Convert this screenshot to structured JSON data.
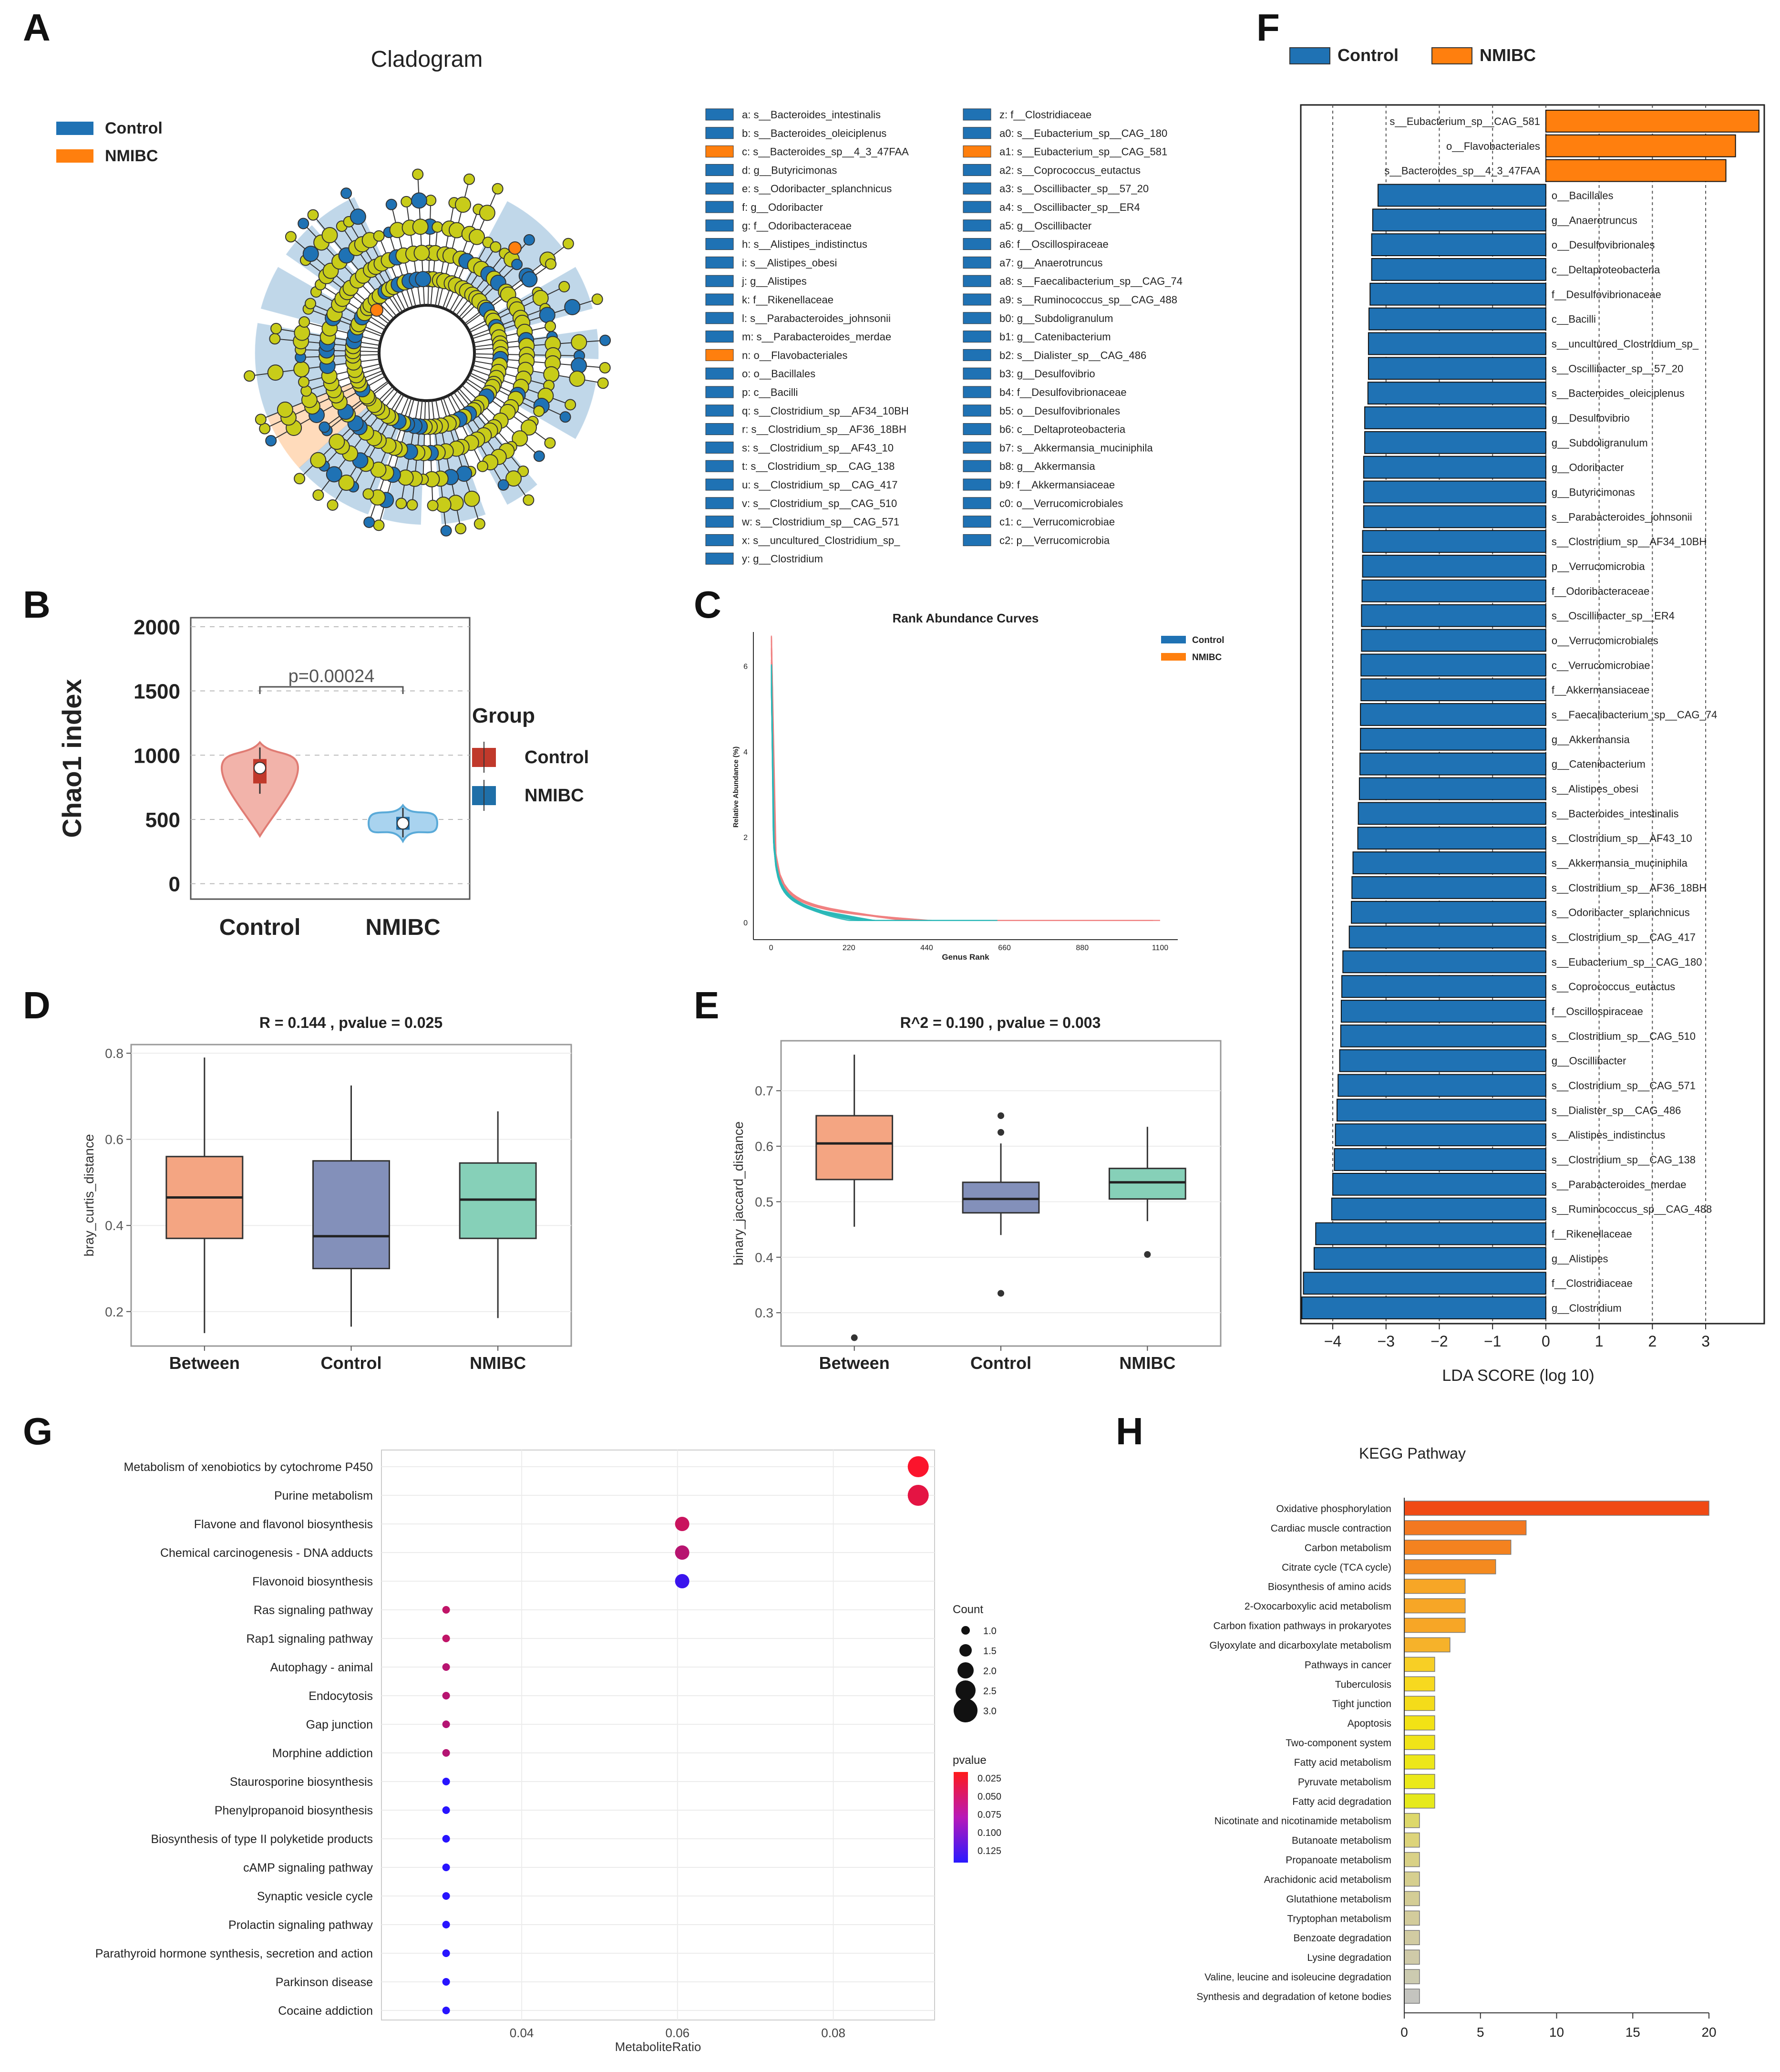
{
  "panel_labels": {
    "A": "A",
    "B": "B",
    "C": "C",
    "D": "D",
    "E": "E",
    "F": "F",
    "G": "G",
    "H": "H"
  },
  "colors": {
    "control": "#1f72b4",
    "nmibc": "#ff7f0e",
    "node": "#c8cc19",
    "dark": "#1a1a1a"
  },
  "chart_data": [
    {
      "id": "A",
      "type": "cladogram",
      "title": "Cladogram",
      "legend": [
        {
          "name": "Control",
          "color": "#1f72b4"
        },
        {
          "name": "NMIBC",
          "color": "#ff7f0e"
        }
      ],
      "node_labels": [
        {
          "key": "a",
          "group": "Control",
          "text": "a: s__Bacteroides_intestinalis"
        },
        {
          "key": "b",
          "group": "Control",
          "text": "b: s__Bacteroides_oleiciplenus"
        },
        {
          "key": "c",
          "group": "NMIBC",
          "text": "c: s__Bacteroides_sp__4_3_47FAA"
        },
        {
          "key": "d",
          "group": "Control",
          "text": "d: g__Butyricimonas"
        },
        {
          "key": "e",
          "group": "Control",
          "text": "e: s__Odoribacter_splanchnicus"
        },
        {
          "key": "f",
          "group": "Control",
          "text": "f: g__Odoribacter"
        },
        {
          "key": "g",
          "group": "Control",
          "text": "g: f__Odoribacteraceae"
        },
        {
          "key": "h",
          "group": "Control",
          "text": "h: s__Alistipes_indistinctus"
        },
        {
          "key": "i",
          "group": "Control",
          "text": "i: s__Alistipes_obesi"
        },
        {
          "key": "j",
          "group": "Control",
          "text": "j: g__Alistipes"
        },
        {
          "key": "k",
          "group": "Control",
          "text": "k: f__Rikenellaceae"
        },
        {
          "key": "l",
          "group": "Control",
          "text": "l: s__Parabacteroides_johnsonii"
        },
        {
          "key": "m",
          "group": "Control",
          "text": "m: s__Parabacteroides_merdae"
        },
        {
          "key": "n",
          "group": "NMIBC",
          "text": "n: o__Flavobacteriales"
        },
        {
          "key": "o",
          "group": "Control",
          "text": "o: o__Bacillales"
        },
        {
          "key": "p",
          "group": "Control",
          "text": "p: c__Bacilli"
        },
        {
          "key": "q",
          "group": "Control",
          "text": "q: s__Clostridium_sp__AF34_10BH"
        },
        {
          "key": "r",
          "group": "Control",
          "text": "r: s__Clostridium_sp__AF36_18BH"
        },
        {
          "key": "s",
          "group": "Control",
          "text": "s: s__Clostridium_sp__AF43_10"
        },
        {
          "key": "t",
          "group": "Control",
          "text": "t: s__Clostridium_sp__CAG_138"
        },
        {
          "key": "u",
          "group": "Control",
          "text": "u: s__Clostridium_sp__CAG_417"
        },
        {
          "key": "v",
          "group": "Control",
          "text": "v: s__Clostridium_sp__CAG_510"
        },
        {
          "key": "w",
          "group": "Control",
          "text": "w: s__Clostridium_sp__CAG_571"
        },
        {
          "key": "x",
          "group": "Control",
          "text": "x: s__uncultured_Clostridium_sp_"
        },
        {
          "key": "y",
          "group": "Control",
          "text": "y: g__Clostridium"
        },
        {
          "key": "z",
          "group": "Control",
          "text": "z: f__Clostridiaceae"
        },
        {
          "key": "a0",
          "group": "Control",
          "text": "a0: s__Eubacterium_sp__CAG_180"
        },
        {
          "key": "a1",
          "group": "NMIBC",
          "text": "a1: s__Eubacterium_sp__CAG_581"
        },
        {
          "key": "a2",
          "group": "Control",
          "text": "a2: s__Coprococcus_eutactus"
        },
        {
          "key": "a3",
          "group": "Control",
          "text": "a3: s__Oscillibacter_sp__57_20"
        },
        {
          "key": "a4",
          "group": "Control",
          "text": "a4: s__Oscillibacter_sp__ER4"
        },
        {
          "key": "a5",
          "group": "Control",
          "text": "a5: g__Oscillibacter"
        },
        {
          "key": "a6",
          "group": "Control",
          "text": "a6: f__Oscillospiraceae"
        },
        {
          "key": "a7",
          "group": "Control",
          "text": "a7: g__Anaerotruncus"
        },
        {
          "key": "a8",
          "group": "Control",
          "text": "a8: s__Faecalibacterium_sp__CAG_74"
        },
        {
          "key": "a9",
          "group": "Control",
          "text": "a9: s__Ruminococcus_sp__CAG_488"
        },
        {
          "key": "b0",
          "group": "Control",
          "text": "b0: g__Subdoligranulum"
        },
        {
          "key": "b1",
          "group": "Control",
          "text": "b1: g__Catenibacterium"
        },
        {
          "key": "b2",
          "group": "Control",
          "text": "b2: s__Dialister_sp__CAG_486"
        },
        {
          "key": "b3",
          "group": "Control",
          "text": "b3: g__Desulfovibrio"
        },
        {
          "key": "b4",
          "group": "Control",
          "text": "b4: f__Desulfovibrionaceae"
        },
        {
          "key": "b5",
          "group": "Control",
          "text": "b5: o__Desulfovibrionales"
        },
        {
          "key": "b6",
          "group": "Control",
          "text": "b6: c__Deltaproteobacteria"
        },
        {
          "key": "b7",
          "group": "Control",
          "text": "b7: s__Akkermansia_muciniphila"
        },
        {
          "key": "b8",
          "group": "Control",
          "text": "b8: g__Akkermansia"
        },
        {
          "key": "b9",
          "group": "Control",
          "text": "b9: f__Akkermansiaceae"
        },
        {
          "key": "c0",
          "group": "Control",
          "text": "c0: o__Verrucomicrobiales"
        },
        {
          "key": "c1",
          "group": "Control",
          "text": "c1: c__Verrucomicrobiae"
        },
        {
          "key": "c2",
          "group": "Control",
          "text": "c2: p__Verrucomicrobia"
        }
      ]
    },
    {
      "id": "B",
      "type": "violin",
      "ylabel": "Chao1 index",
      "categories": [
        "Control",
        "NMIBC"
      ],
      "yticks": [
        0,
        500,
        1000,
        1500,
        2000
      ],
      "ylim": [
        -120,
        2070
      ],
      "medians": [
        900,
        470
      ],
      "q1": [
        780,
        420
      ],
      "q3": [
        970,
        520
      ],
      "annotation": "p=0.00024",
      "legend_title": "Group",
      "legend": [
        {
          "name": "Control",
          "color": "#c0392b"
        },
        {
          "name": "NMIBC",
          "color": "#1f6fa8"
        }
      ]
    },
    {
      "id": "C",
      "type": "line",
      "title": "Rank Abundance Curves",
      "xlabel": "Genus Rank",
      "ylabel": "Relative Abundance (%)",
      "xticks": [
        "0",
        "220",
        "440",
        "660",
        "880",
        "1100"
      ],
      "yticks": [
        "0",
        "2",
        "4",
        "6"
      ],
      "xlim": [
        -50,
        1150
      ],
      "ylim": [
        -0.4,
        6.8
      ],
      "legend": [
        {
          "name": "Control",
          "color": "#1f72b4"
        },
        {
          "name": "NMIBC",
          "color": "#ff7f0e"
        }
      ],
      "series_groups": [
        {
          "name": "Control",
          "color": "#f08080",
          "count": 10,
          "max_rank": [
            960,
            1000,
            1060,
            1100,
            1080,
            1040,
            1010,
            980,
            950,
            1000
          ]
        },
        {
          "name": "NMIBC",
          "color": "#2ab8b8",
          "count": 14,
          "max_rank": [
            420,
            460,
            490,
            510,
            540,
            560,
            580,
            600,
            620,
            640,
            500,
            560,
            520,
            600
          ]
        }
      ]
    },
    {
      "id": "D",
      "type": "boxplot",
      "title": "R = 0.144 , pvalue = 0.025",
      "ylabel": "bray_curtis_distance",
      "categories": [
        "Between",
        "Control",
        "NMIBC"
      ],
      "yticks": [
        "0.2",
        "0.4",
        "0.6",
        "0.8"
      ],
      "ylim": [
        0.12,
        0.82
      ],
      "boxes": [
        {
          "min": 0.15,
          "q1": 0.37,
          "median": 0.465,
          "q3": 0.56,
          "max": 0.79,
          "color": "#f4a582"
        },
        {
          "min": 0.165,
          "q1": 0.3,
          "median": 0.375,
          "q3": 0.55,
          "max": 0.725,
          "color": "#8390ba"
        },
        {
          "min": 0.185,
          "q1": 0.37,
          "median": 0.46,
          "q3": 0.545,
          "max": 0.665,
          "color": "#86d0b8"
        }
      ],
      "outliers": []
    },
    {
      "id": "E",
      "type": "boxplot",
      "title": "R^2 = 0.190 , pvalue = 0.003",
      "ylabel": "binary_jaccard_distance",
      "categories": [
        "Between",
        "Control",
        "NMIBC"
      ],
      "yticks": [
        "0.3",
        "0.4",
        "0.5",
        "0.6",
        "0.7"
      ],
      "ylim": [
        0.24,
        0.79
      ],
      "boxes": [
        {
          "min": 0.455,
          "q1": 0.54,
          "median": 0.605,
          "q3": 0.655,
          "max": 0.765,
          "color": "#f4a582"
        },
        {
          "min": 0.44,
          "q1": 0.48,
          "median": 0.505,
          "q3": 0.535,
          "max": 0.605,
          "color": "#8390ba"
        },
        {
          "min": 0.465,
          "q1": 0.505,
          "median": 0.535,
          "q3": 0.56,
          "max": 0.635,
          "color": "#86d0b8"
        }
      ],
      "outliers": [
        {
          "box": 0,
          "value": 0.255
        },
        {
          "box": 1,
          "value": 0.655
        },
        {
          "box": 1,
          "value": 0.625
        },
        {
          "box": 1,
          "value": 0.335
        },
        {
          "box": 2,
          "value": 0.405
        }
      ]
    },
    {
      "id": "F",
      "type": "bar",
      "orientation": "horizontal",
      "xlabel": "LDA SCORE (log 10)",
      "xticks": [
        -4,
        -3,
        -2,
        -1,
        0,
        1,
        2,
        3
      ],
      "xlim": [
        -4.6,
        4.1
      ],
      "legend": [
        {
          "name": "Control",
          "color": "#1f72b4"
        },
        {
          "name": "NMIBC",
          "color": "#ff7f0e"
        }
      ],
      "categories": [
        "s__Eubacterium_sp__CAG_581",
        "o__Flavobacteriales",
        "s__Bacteroides_sp__4_3_47FAA",
        "o__Bacillales",
        "g__Anaerotruncus",
        "o__Desulfovibrionales",
        "c__Deltaproteobacteria",
        "f__Desulfovibrionaceae",
        "c__Bacilli",
        "s__uncultured_Clostridium_sp_",
        "s__Oscillibacter_sp__57_20",
        "s__Bacteroides_oleiciplenus",
        "g__Desulfovibrio",
        "g__Subdoligranulum",
        "g__Odoribacter",
        "g__Butyricimonas",
        "s__Parabacteroides_johnsonii",
        "s__Clostridium_sp__AF34_10BH",
        "p__Verrucomicrobia",
        "f__Odoribacteraceae",
        "s__Oscillibacter_sp__ER4",
        "o__Verrucomicrobiales",
        "c__Verrucomicrobiae",
        "f__Akkermansiaceae",
        "s__Faecalibacterium_sp__CAG_74",
        "g__Akkermansia",
        "g__Catenibacterium",
        "s__Alistipes_obesi",
        "s__Bacteroides_intestinalis",
        "s__Clostridium_sp__AF43_10",
        "s__Akkermansia_muciniphila",
        "s__Clostridium_sp__AF36_18BH",
        "s__Odoribacter_splanchnicus",
        "s__Clostridium_sp__CAG_417",
        "s__Eubacterium_sp__CAG_180",
        "s__Coprococcus_eutactus",
        "f__Oscillospiraceae",
        "s__Clostridium_sp__CAG_510",
        "g__Oscillibacter",
        "s__Clostridium_sp__CAG_571",
        "s__Dialister_sp__CAG_486",
        "s__Alistipes_indistinctus",
        "s__Clostridium_sp__CAG_138",
        "s__Parabacteroides_merdae",
        "s__Ruminococcus_sp__CAG_488",
        "f__Rikenellaceae",
        "g__Alistipes",
        "f__Clostridiaceae",
        "g__Clostridium"
      ],
      "values": [
        4.0,
        3.56,
        3.38,
        -3.15,
        -3.25,
        -3.27,
        -3.27,
        -3.3,
        -3.32,
        -3.33,
        -3.33,
        -3.34,
        -3.4,
        -3.4,
        -3.42,
        -3.42,
        -3.42,
        -3.44,
        -3.44,
        -3.45,
        -3.46,
        -3.46,
        -3.47,
        -3.47,
        -3.48,
        -3.48,
        -3.49,
        -3.5,
        -3.52,
        -3.53,
        -3.62,
        -3.64,
        -3.65,
        -3.69,
        -3.81,
        -3.83,
        -3.84,
        -3.85,
        -3.87,
        -3.9,
        -3.92,
        -3.95,
        -3.97,
        -4.0,
        -4.02,
        -4.32,
        -4.35,
        -4.55,
        -4.58
      ],
      "groups": [
        "NMIBC",
        "NMIBC",
        "NMIBC",
        "Control",
        "Control",
        "Control",
        "Control",
        "Control",
        "Control",
        "Control",
        "Control",
        "Control",
        "Control",
        "Control",
        "Control",
        "Control",
        "Control",
        "Control",
        "Control",
        "Control",
        "Control",
        "Control",
        "Control",
        "Control",
        "Control",
        "Control",
        "Control",
        "Control",
        "Control",
        "Control",
        "Control",
        "Control",
        "Control",
        "Control",
        "Control",
        "Control",
        "Control",
        "Control",
        "Control",
        "Control",
        "Control",
        "Control",
        "Control",
        "Control",
        "Control",
        "Control",
        "Control",
        "Control",
        "Control"
      ]
    },
    {
      "id": "G",
      "type": "scatter",
      "xlabel": "MetaboliteRatio",
      "xticks": [
        "0.04",
        "0.06",
        "0.08"
      ],
      "xlim": [
        0.022,
        0.093
      ],
      "categories": [
        "Metabolism of xenobiotics by cytochrome P450",
        "Purine metabolism",
        "Flavone and flavonol biosynthesis",
        "Chemical carcinogenesis - DNA adducts",
        "Flavonoid biosynthesis",
        "Ras signaling pathway",
        "Rap1 signaling pathway",
        "Autophagy - animal",
        "Endocytosis",
        "Gap junction",
        "Morphine addiction",
        "Staurosporine biosynthesis",
        "Phenylpropanoid biosynthesis",
        "Biosynthesis of type II polyketide products",
        "cAMP signaling pathway",
        "Synaptic vesicle cycle",
        "Prolactin signaling pathway",
        "Parathyroid hormone synthesis, secretion and action",
        "Parkinson disease",
        "Cocaine addiction"
      ],
      "x": [
        0.0909,
        0.0909,
        0.0606,
        0.0606,
        0.0606,
        0.0303,
        0.0303,
        0.0303,
        0.0303,
        0.0303,
        0.0303,
        0.0303,
        0.0303,
        0.0303,
        0.0303,
        0.0303,
        0.0303,
        0.0303,
        0.0303,
        0.0303
      ],
      "count": [
        3,
        3,
        2,
        2,
        2,
        1,
        1,
        1,
        1,
        1,
        1,
        1,
        1,
        1,
        1,
        1,
        1,
        1,
        1,
        1
      ],
      "pvalue": [
        0.022,
        0.035,
        0.05,
        0.06,
        0.13,
        0.055,
        0.055,
        0.06,
        0.06,
        0.062,
        0.062,
        0.14,
        0.14,
        0.14,
        0.14,
        0.14,
        0.14,
        0.14,
        0.14,
        0.14
      ],
      "size_legend_title": "Count",
      "size_legend": [
        "1.0",
        "1.5",
        "2.0",
        "2.5",
        "3.0"
      ],
      "color_legend_title": "pvalue",
      "color_legend": [
        "0.025",
        "0.050",
        "0.075",
        "0.100",
        "0.125"
      ]
    },
    {
      "id": "H",
      "type": "bar",
      "orientation": "horizontal",
      "title": "KEGG Pathway",
      "xticks": [
        0,
        5,
        10,
        15,
        20
      ],
      "xlim": [
        0,
        20.5
      ],
      "categories": [
        "Oxidative phosphorylation",
        "Cardiac muscle contraction",
        "Carbon metabolism",
        "Citrate cycle (TCA cycle)",
        "Biosynthesis of amino acids",
        "2-Oxocarboxylic acid metabolism",
        "Carbon fixation pathways in prokaryotes",
        "Glyoxylate and dicarboxylate metabolism",
        "Pathways in cancer",
        "Tuberculosis",
        "Tight junction",
        "Apoptosis",
        "Two-component system",
        "Fatty acid metabolism",
        "Pyruvate metabolism",
        "Fatty acid degradation",
        "Nicotinate and nicotinamide metabolism",
        "Butanoate metabolism",
        "Propanoate metabolism",
        "Arachidonic acid metabolism",
        "Glutathione metabolism",
        "Tryptophan metabolism",
        "Benzoate degradation",
        "Lysine degradation",
        "Valine, leucine and isoleucine degradation",
        "Synthesis and degradation of ketone bodies"
      ],
      "values": [
        20,
        8,
        7,
        6,
        4,
        4,
        4,
        3,
        2,
        2,
        2,
        2,
        2,
        2,
        2,
        2,
        1,
        1,
        1,
        1,
        1,
        1,
        1,
        1,
        1,
        1
      ],
      "bar_colors": [
        "#f04a14",
        "#f37820",
        "#f4821f",
        "#f48a1f",
        "#f7a626",
        "#f7a626",
        "#f7a626",
        "#f6b22a",
        "#f7cf25",
        "#f7d91f",
        "#f4dc1a",
        "#f2e215",
        "#f0e418",
        "#ede719",
        "#ebe91a",
        "#e6e91c",
        "#ddd86a",
        "#ddd47a",
        "#d9d186",
        "#d6cf8f",
        "#d4cd96",
        "#d3cc9c",
        "#d1cba2",
        "#cfcaa8",
        "#cccbb0",
        "#c4c4bf"
      ]
    }
  ]
}
